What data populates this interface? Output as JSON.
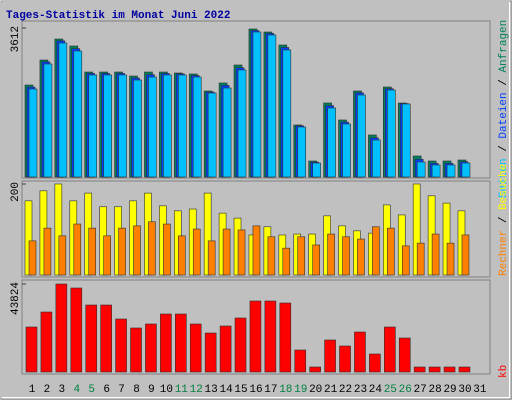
{
  "chart_data": [
    {
      "type": "bar",
      "title": "Tages-Statistik im Monat Juni 2022",
      "title_color": "#0000a0",
      "ylim": [
        0,
        3612
      ],
      "yticks": [
        3612
      ],
      "legend_separator": " / ",
      "series": [
        {
          "name": "Anfragen",
          "color": "#00805c",
          "values": [
            2230,
            2836,
            3345,
            3176,
            2545,
            2545,
            2545,
            2448,
            2545,
            2545,
            2521,
            2497,
            2085,
            2279,
            2715,
            3588,
            3515,
            3200,
            1261,
            388,
            1794,
            1382,
            2085,
            1018,
            2182,
            1794,
            509,
            388,
            388,
            412,
            null
          ]
        },
        {
          "name": "Dateien",
          "color": "#0040ff",
          "values": [
            2180,
            2790,
            3300,
            3110,
            2510,
            2510,
            2510,
            2400,
            2480,
            2510,
            2500,
            2460,
            2060,
            2220,
            2650,
            3550,
            3480,
            3140,
            1240,
            360,
            1730,
            1330,
            2040,
            950,
            2140,
            1780,
            430,
            330,
            330,
            370,
            null
          ]
        },
        {
          "name": "Seiten",
          "color": "#00c0ff",
          "values": [
            2133,
            2739,
            3248,
            3055,
            2473,
            2473,
            2473,
            2351,
            2424,
            2473,
            2473,
            2424,
            2036,
            2157,
            2594,
            3515,
            3442,
            3079,
            1212,
            339,
            1673,
            1285,
            1988,
            897,
            2109,
            1770,
            364,
            291,
            291,
            339,
            null
          ]
        }
      ]
    },
    {
      "type": "bar",
      "ylim": [
        0,
        200
      ],
      "yticks": [
        200
      ],
      "legend_separator": " / ",
      "series": [
        {
          "name": "Besuche",
          "color": "#ffff00",
          "values": [
            163,
            185,
            200,
            163,
            180,
            150,
            150,
            163,
            180,
            152,
            141,
            145,
            180,
            136,
            125,
            88,
            106,
            88,
            90,
            90,
            130,
            108,
            97,
            92,
            154,
            132,
            200,
            174,
            158,
            141,
            null
          ]
        },
        {
          "name": "Rechner",
          "color": "#ff8000",
          "values": [
            75,
            103,
            86,
            112,
            103,
            86,
            103,
            108,
            117,
            112,
            86,
            101,
            75,
            101,
            99,
            108,
            84,
            59,
            84,
            66,
            90,
            84,
            79,
            106,
            103,
            64,
            70,
            90,
            70,
            88,
            null
          ]
        }
      ]
    },
    {
      "type": "bar",
      "ylim": [
        0,
        43824
      ],
      "yticks": [
        43824
      ],
      "categories": [
        "1",
        "2",
        "3",
        "4",
        "5",
        "6",
        "7",
        "8",
        "9",
        "10",
        "11",
        "12",
        "13",
        "14",
        "15",
        "16",
        "17",
        "18",
        "19",
        "20",
        "21",
        "22",
        "23",
        "24",
        "25",
        "26",
        "27",
        "28",
        "29",
        "30",
        "31"
      ],
      "category_colors": [
        "#000000",
        "#000000",
        "#000000",
        "#008040",
        "#008040",
        "#000000",
        "#000000",
        "#000000",
        "#000000",
        "#000000",
        "#008040",
        "#008040",
        "#000000",
        "#000000",
        "#000000",
        "#000000",
        "#000000",
        "#008040",
        "#008040",
        "#000000",
        "#000000",
        "#000000",
        "#000000",
        "#000000",
        "#008040",
        "#008040",
        "#000000",
        "#000000",
        "#000000",
        "#000000",
        "#000000"
      ],
      "series": [
        {
          "name": "kb",
          "color": "#ff0000",
          "values": [
            22410,
            29880,
            43824,
            41832,
            33366,
            33366,
            26394,
            21912,
            23904,
            28884,
            28884,
            23904,
            19422,
            22908,
            26892,
            35358,
            35358,
            34362,
            10956,
            2490,
            15936,
            12948,
            19920,
            8964,
            22410,
            16932,
            2490,
            2490,
            2490,
            2490,
            null
          ]
        }
      ]
    }
  ]
}
